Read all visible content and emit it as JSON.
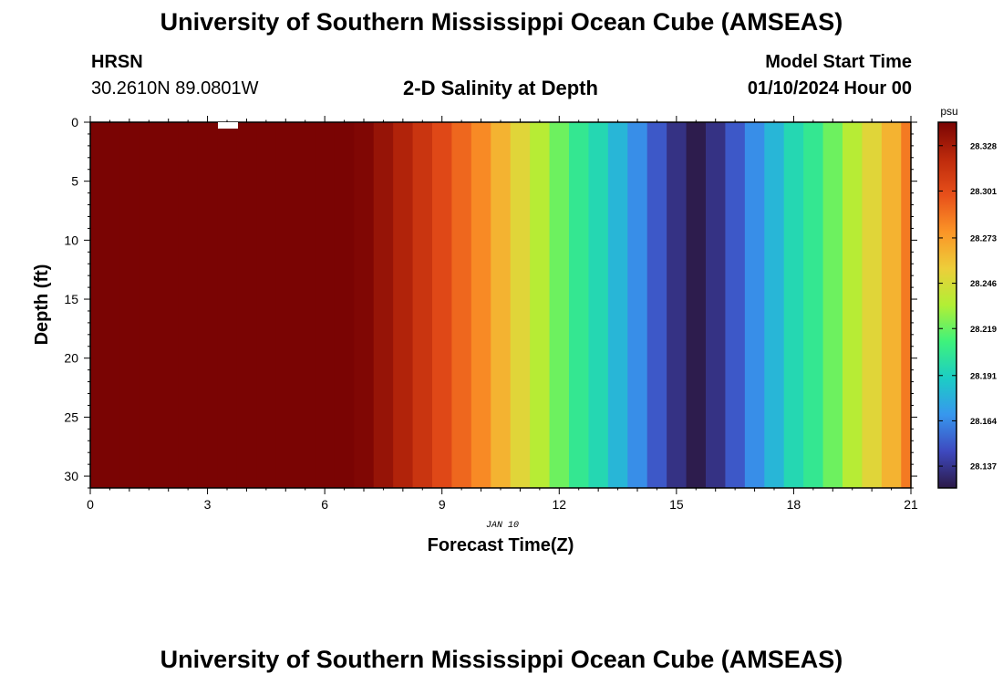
{
  "header": {
    "title": "University of Southern Mississippi Ocean Cube (AMSEAS)",
    "station": "HRSN",
    "coordinates": "30.2610N  89.0801W",
    "subtitle": "2-D Salinity at Depth",
    "model_start_label": "Model Start Time",
    "model_start_value": "01/10/2024 Hour 00"
  },
  "footer": {
    "title": "University of Southern Mississippi Ocean Cube (AMSEAS)"
  },
  "chart_data": {
    "type": "heatmap",
    "title": "2-D Salinity at Depth",
    "xlabel": "Forecast Time(Z)",
    "ylabel": "Depth (ft)",
    "date_label": "JAN 10",
    "xlim": [
      0,
      21
    ],
    "ylim": [
      0,
      31
    ],
    "x_ticks": [
      0,
      3,
      6,
      9,
      12,
      15,
      18,
      21
    ],
    "y_ticks": [
      0,
      5,
      10,
      15,
      20,
      25,
      30
    ],
    "hours": [
      0,
      0.5,
      1,
      1.5,
      2,
      2.5,
      3,
      3.5,
      4,
      4.5,
      5,
      5.5,
      6,
      6.5,
      7,
      7.5,
      8,
      8.5,
      9,
      9.5,
      10,
      10.5,
      11,
      11.5,
      12,
      12.5,
      13,
      13.5,
      14,
      14.5,
      15,
      15.5,
      16,
      16.5,
      17,
      17.5,
      18,
      18.5,
      19,
      19.5,
      20,
      20.5,
      21
    ],
    "salinity": [
      28.345,
      28.346,
      28.347,
      28.348,
      28.349,
      28.35,
      28.351,
      28.352,
      28.352,
      28.351,
      28.35,
      28.349,
      28.348,
      28.345,
      28.34,
      28.333,
      28.324,
      28.314,
      28.303,
      28.291,
      28.28,
      28.265,
      28.25,
      28.235,
      28.22,
      28.205,
      28.195,
      28.18,
      28.165,
      28.15,
      28.135,
      28.125,
      28.135,
      28.15,
      28.165,
      28.18,
      28.195,
      28.205,
      28.22,
      28.235,
      28.25,
      28.265,
      28.285
    ],
    "colorbar": {
      "unit": "psu",
      "min": 28.124,
      "max": 28.342,
      "ticks": [
        "28.328",
        "28.301",
        "28.273",
        "28.246",
        "28.219",
        "28.191",
        "28.164",
        "28.137"
      ],
      "colors": [
        "#2c1a48",
        "#3e49bf",
        "#3797ee",
        "#1ccdc5",
        "#3ef27c",
        "#b2ef35",
        "#edce3a",
        "#fb9527",
        "#e8501a",
        "#bd2a0c",
        "#7a0403"
      ]
    }
  }
}
